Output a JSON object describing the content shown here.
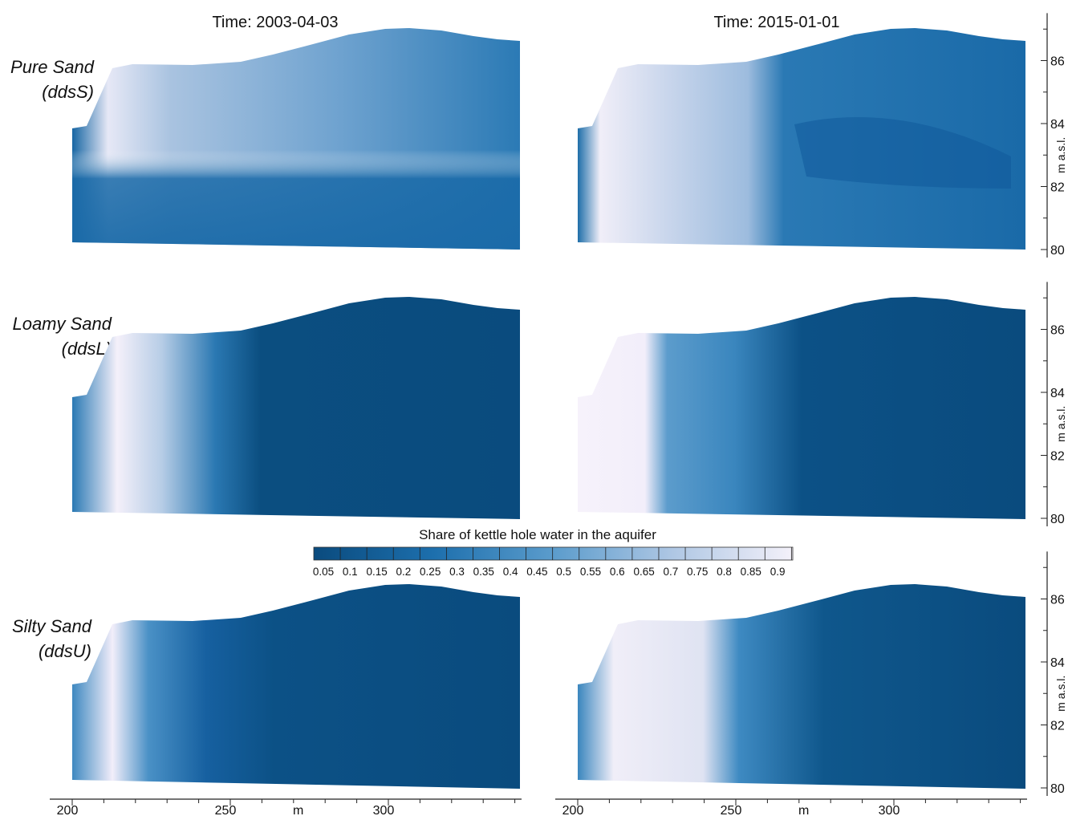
{
  "columns": [
    {
      "title": "Time: 2003-04-03"
    },
    {
      "title": "Time: 2015-01-01"
    }
  ],
  "rows": [
    {
      "label_line1": "Pure Sand",
      "label_line2": "(ddsS)"
    },
    {
      "label_line1": "Loamy Sand",
      "label_line2": "(ddsL)"
    },
    {
      "label_line1": "Silty Sand",
      "label_line2": "(ddsU)"
    }
  ],
  "y_axis": {
    "label": "m a.s.l.",
    "ticks": [
      "80",
      "82",
      "84",
      "86"
    ]
  },
  "x_axis": {
    "label": "m",
    "ticks": [
      "200",
      "250",
      "300"
    ]
  },
  "colorbar": {
    "title": "Share of kettle hole water in the aquifer",
    "ticks": [
      "0.05",
      "0.1",
      "0.15",
      "0.2",
      "0.25",
      "0.3",
      "0.35",
      "0.4",
      "0.45",
      "0.5",
      "0.55",
      "0.6",
      "0.65",
      "0.7",
      "0.75",
      "0.8",
      "0.85",
      "0.9"
    ],
    "color_low": "#0a4d80",
    "color_mid": "#4f95c6",
    "color_high": "#f2eefa"
  }
}
